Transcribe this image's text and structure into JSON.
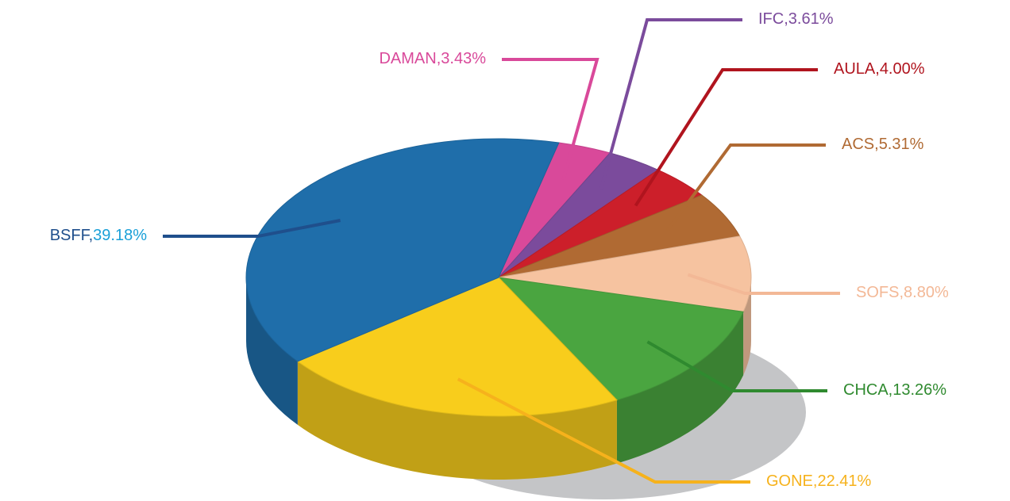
{
  "chart_data": {
    "type": "pie3d",
    "categories": [
      "DAMAN",
      "IFC",
      "AULA",
      "ACS",
      "SOFS",
      "CHCA",
      "GONE",
      "BSFF"
    ],
    "values": [
      3.43,
      3.61,
      4.0,
      5.31,
      8.8,
      13.26,
      22.41,
      39.18
    ],
    "value_labels": [
      "3.43%",
      "3.61%",
      "4.00%",
      "5.31%",
      "8.80%",
      "13.26%",
      "22.41%",
      "39.18%"
    ],
    "label_separator": ",",
    "colors": [
      "#d9499a",
      "#7b4b9c",
      "#cc1f2a",
      "#b06a33",
      "#f6c3a0",
      "#4aa540",
      "#f8cd1c",
      "#1f6eaa"
    ]
  }
}
